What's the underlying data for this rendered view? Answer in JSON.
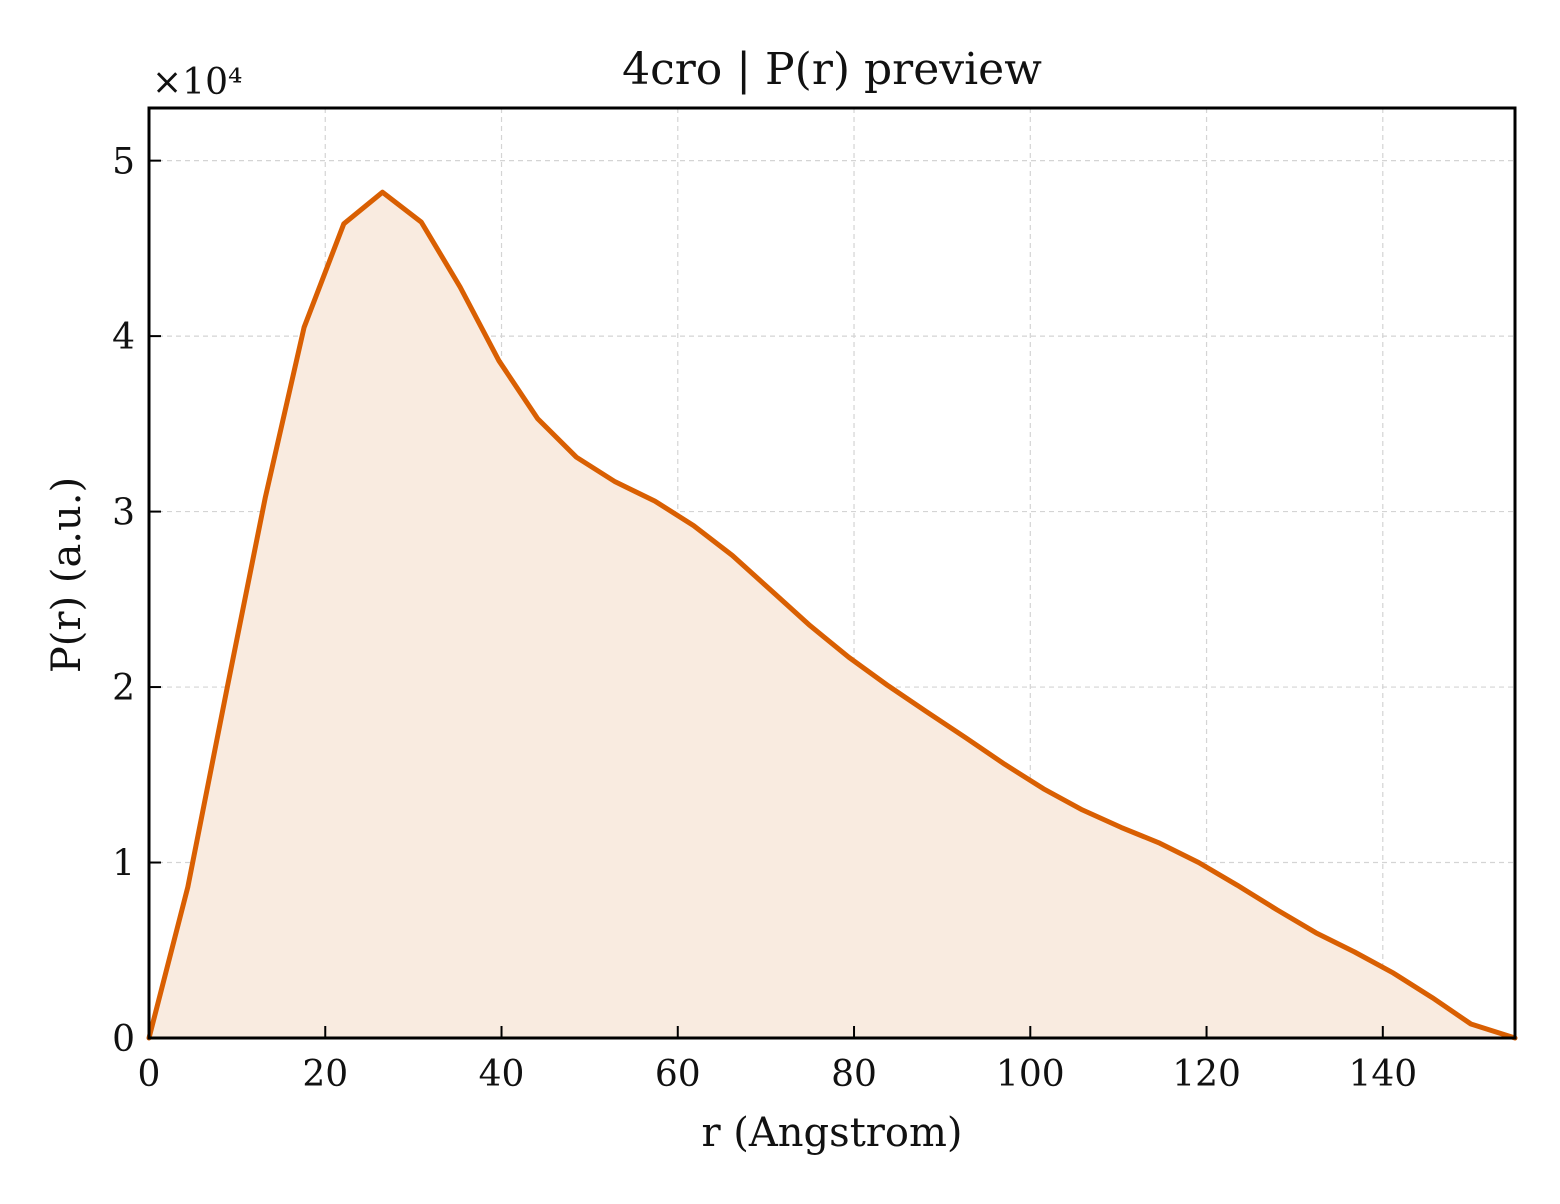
{
  "chart_data": {
    "type": "area",
    "title": "4cro | P(r) preview",
    "xlabel": "r (Angstrom)",
    "ylabel": "P(r) (a.u.)",
    "y_scale_label": "×10⁴",
    "y_multiplier": 10000,
    "xlim": [
      0,
      155
    ],
    "ylim": [
      0,
      5.3
    ],
    "x_ticks": [
      0,
      20,
      40,
      60,
      80,
      100,
      120,
      140
    ],
    "y_ticks": [
      0,
      1,
      2,
      3,
      4,
      5
    ],
    "grid": true,
    "line_color": "#d95f02",
    "fill_color": "#f9ebe0",
    "series": [
      {
        "x": [
          0,
          4.4,
          8.8,
          13.2,
          17.6,
          22.1,
          26.5,
          30.9,
          35.3,
          39.7,
          44.1,
          48.5,
          52.9,
          57.4,
          61.8,
          66.2,
          70.6,
          75.0,
          79.4,
          83.8,
          88.2,
          92.7,
          97.1,
          101.5,
          105.9,
          110.3,
          114.7,
          119.1,
          123.5,
          128.0,
          132.4,
          136.8,
          141.2,
          145.6,
          150.0,
          155.0
        ],
        "y": [
          0,
          0.86,
          1.98,
          3.08,
          4.05,
          4.64,
          4.82,
          4.65,
          4.28,
          3.86,
          3.53,
          3.31,
          3.17,
          3.06,
          2.92,
          2.75,
          2.55,
          2.35,
          2.17,
          2.01,
          1.86,
          1.71,
          1.56,
          1.42,
          1.3,
          1.2,
          1.11,
          1.0,
          0.87,
          0.73,
          0.6,
          0.49,
          0.37,
          0.23,
          0.08,
          0.0
        ]
      }
    ]
  }
}
